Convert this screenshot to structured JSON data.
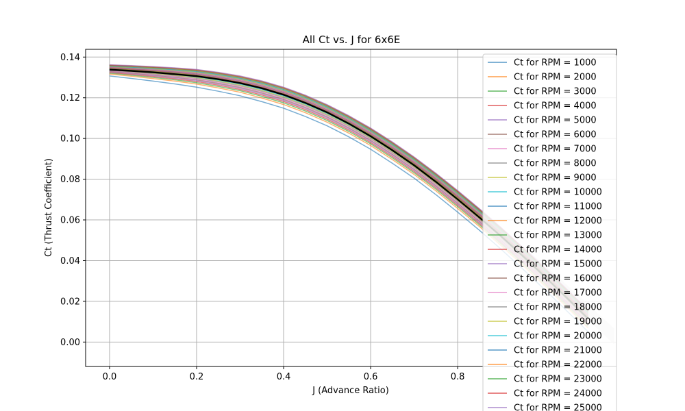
{
  "chart_data": {
    "type": "line",
    "title": "All Ct vs. J for 6x6E",
    "xlabel": "J (Advance Ratio)",
    "ylabel": "Ct (Thrust Coefficient)",
    "xlim": [
      -0.055,
      1.165
    ],
    "ylim": [
      -0.012,
      0.1438
    ],
    "xticks": [
      0.0,
      0.2,
      0.4,
      0.6,
      0.8
    ],
    "xtick_labels": [
      "0.0",
      "0.2",
      "0.4",
      "0.6",
      "0.8"
    ],
    "yticks": [
      0.0,
      0.02,
      0.04,
      0.06,
      0.08,
      0.1,
      0.12,
      0.14
    ],
    "ytick_labels": [
      "0.00",
      "0.02",
      "0.04",
      "0.06",
      "0.08",
      "0.10",
      "0.12",
      "0.14"
    ],
    "grid": true,
    "legend_position": "upper-right",
    "x": [
      0.0,
      0.05,
      0.1,
      0.15,
      0.2,
      0.25,
      0.3,
      0.35,
      0.4,
      0.45,
      0.5,
      0.55,
      0.6,
      0.65,
      0.7,
      0.75,
      0.8,
      0.85,
      0.9,
      0.95,
      1.0,
      1.05,
      1.1
    ],
    "series_low": [
      0.1307,
      0.1295,
      0.1282,
      0.1268,
      0.1252,
      0.1232,
      0.121,
      0.1181,
      0.1149,
      0.1108,
      0.1062,
      0.1008,
      0.0947,
      0.0878,
      0.0805,
      0.0724,
      0.0638,
      0.0549,
      0.0455,
      0.0358,
      0.0258,
      0.0155,
      0.005
    ],
    "series_high": [
      0.1362,
      0.1358,
      0.1353,
      0.1347,
      0.1339,
      0.1325,
      0.1307,
      0.1283,
      0.1252,
      0.1213,
      0.1166,
      0.1112,
      0.1051,
      0.0983,
      0.0909,
      0.0829,
      0.0744,
      0.0655,
      0.0562,
      0.0465,
      0.0365,
      0.0262,
      0.0157
    ],
    "mean": {
      "values": [
        0.1338,
        0.1332,
        0.1325,
        0.1316,
        0.1306,
        0.1291,
        0.1272,
        0.1247,
        0.1215,
        0.1175,
        0.1128,
        0.1073,
        0.1011,
        0.0942,
        0.0868,
        0.0787,
        0.0701,
        0.0612,
        0.0519,
        0.0422,
        0.0322,
        0.0219,
        0.0114
      ],
      "color": "#000000"
    },
    "band": {
      "x": [
        0.92,
        0.96,
        1.0,
        1.04,
        1.08,
        1.12,
        1.16
      ],
      "lower": [
        0.0458,
        0.0383,
        0.0305,
        0.0228,
        0.0149,
        0.0068,
        -0.0012
      ],
      "upper": [
        0.052,
        0.0452,
        0.0378,
        0.0302,
        0.0225,
        0.0146,
        0.0066
      ],
      "color": "#d9d5cf"
    },
    "series": [
      {
        "name": "Ct for RPM = 1000",
        "color": "#1f77b4"
      },
      {
        "name": "Ct for RPM = 2000",
        "color": "#ff7f0e"
      },
      {
        "name": "Ct for RPM = 3000",
        "color": "#2ca02c"
      },
      {
        "name": "Ct for RPM = 4000",
        "color": "#d62728"
      },
      {
        "name": "Ct for RPM = 5000",
        "color": "#9467bd"
      },
      {
        "name": "Ct for RPM = 6000",
        "color": "#8c564b"
      },
      {
        "name": "Ct for RPM = 7000",
        "color": "#e377c2"
      },
      {
        "name": "Ct for RPM = 8000",
        "color": "#7f7f7f"
      },
      {
        "name": "Ct for RPM = 9000",
        "color": "#bcbd22"
      },
      {
        "name": "Ct for RPM = 10000",
        "color": "#17becf"
      },
      {
        "name": "Ct for RPM = 11000",
        "color": "#1f77b4"
      },
      {
        "name": "Ct for RPM = 12000",
        "color": "#ff7f0e"
      },
      {
        "name": "Ct for RPM = 13000",
        "color": "#2ca02c"
      },
      {
        "name": "Ct for RPM = 14000",
        "color": "#d62728"
      },
      {
        "name": "Ct for RPM = 15000",
        "color": "#9467bd"
      },
      {
        "name": "Ct for RPM = 16000",
        "color": "#8c564b"
      },
      {
        "name": "Ct for RPM = 17000",
        "color": "#e377c2"
      },
      {
        "name": "Ct for RPM = 18000",
        "color": "#7f7f7f"
      },
      {
        "name": "Ct for RPM = 19000",
        "color": "#bcbd22"
      },
      {
        "name": "Ct for RPM = 20000",
        "color": "#17becf"
      },
      {
        "name": "Ct for RPM = 21000",
        "color": "#1f77b4"
      },
      {
        "name": "Ct for RPM = 22000",
        "color": "#ff7f0e"
      },
      {
        "name": "Ct for RPM = 23000",
        "color": "#2ca02c"
      },
      {
        "name": "Ct for RPM = 24000",
        "color": "#d62728"
      },
      {
        "name": "Ct for RPM = 25000",
        "color": "#9467bd"
      }
    ]
  }
}
